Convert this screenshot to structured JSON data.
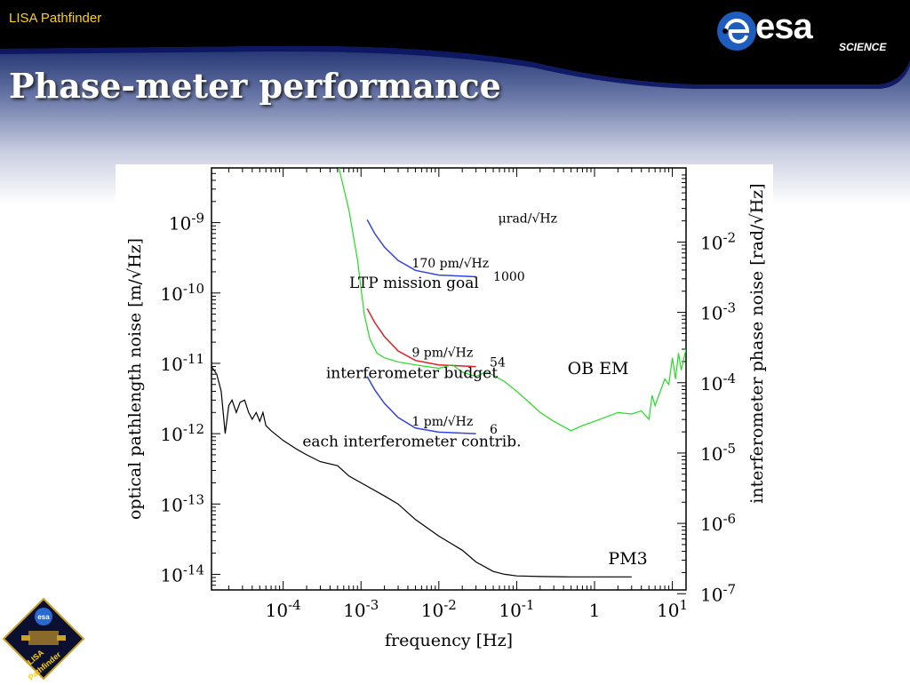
{
  "header": {
    "mission": "LISA Pathfinder",
    "logo_word": "esa",
    "logo_sub": "SCIENCE",
    "title": "Phase-meter performance"
  },
  "badge": {
    "top_text": "esa",
    "line1": "LISA",
    "line2": "Pathfinder"
  },
  "colors": {
    "accent": "#ffd200",
    "banner": "#000000",
    "green": "#22dd22",
    "blue": "#3344dd",
    "red": "#dd2222",
    "black": "#000000"
  },
  "chart_data": {
    "type": "line",
    "xlabel": "frequency [Hz]",
    "ylabel_left": "optical pathlength noise [m/√Hz]",
    "ylabel_right": "interferometer phase noise [rad/√Hz]",
    "x_scale": "log",
    "y_scale": "log",
    "xlim": [
      1.2e-05,
      15
    ],
    "ylim": [
      6e-15,
      6e-09
    ],
    "x_ticks": [
      {
        "value": 0.0001,
        "base": "10",
        "exp": "-4"
      },
      {
        "value": 0.001,
        "base": "10",
        "exp": "-3"
      },
      {
        "value": 0.01,
        "base": "10",
        "exp": "-2"
      },
      {
        "value": 0.1,
        "base": "10",
        "exp": "-1"
      },
      {
        "value": 1,
        "base": "1",
        "exp": ""
      },
      {
        "value": 10,
        "base": "10",
        "exp": "1"
      }
    ],
    "y_ticks_left": [
      {
        "value": 1e-09,
        "base": "10",
        "exp": "-9"
      },
      {
        "value": 1e-10,
        "base": "10",
        "exp": "-10"
      },
      {
        "value": 1e-11,
        "base": "10",
        "exp": "-11"
      },
      {
        "value": 1e-12,
        "base": "10",
        "exp": "-12"
      },
      {
        "value": 1e-13,
        "base": "10",
        "exp": "-13"
      },
      {
        "value": 1e-14,
        "base": "10",
        "exp": "-14"
      }
    ],
    "y_ticks_right": [
      {
        "value": 5.3e-10,
        "base": "10",
        "exp": "-2"
      },
      {
        "value": 5.3e-11,
        "base": "10",
        "exp": "-3"
      },
      {
        "value": 5.3e-12,
        "base": "10",
        "exp": "-4"
      },
      {
        "value": 5.3e-13,
        "base": "10",
        "exp": "-5"
      },
      {
        "value": 5.3e-14,
        "base": "10",
        "exp": "-6"
      },
      {
        "value": 5.3e-15,
        "base": "10",
        "exp": "-7"
      }
    ],
    "series": [
      {
        "name": "OB EM",
        "color": "#22dd22",
        "points": [
          [
            0.00052,
            6e-09
          ],
          [
            0.0007,
            1.5e-09
          ],
          [
            0.0009,
            3e-10
          ],
          [
            0.0011,
            5e-11
          ],
          [
            0.0013,
            2.2e-11
          ],
          [
            0.0016,
            1.4e-11
          ],
          [
            0.002,
            1.2e-11
          ],
          [
            0.003,
            1.05e-11
          ],
          [
            0.005,
            9.5e-12
          ],
          [
            0.007,
            9e-12
          ],
          [
            0.01,
            8.5e-12
          ],
          [
            0.015,
            9.5e-12
          ],
          [
            0.02,
            7.5e-12
          ],
          [
            0.03,
            6.5e-12
          ],
          [
            0.04,
            7.5e-12
          ],
          [
            0.05,
            6.8e-12
          ],
          [
            0.07,
            5.5e-12
          ],
          [
            0.1,
            4e-12
          ],
          [
            0.15,
            2.7e-12
          ],
          [
            0.2,
            2e-12
          ],
          [
            0.3,
            1.5e-12
          ],
          [
            0.5,
            1.1e-12
          ],
          [
            0.7,
            1.3e-12
          ],
          [
            1,
            1.5e-12
          ],
          [
            2,
            2e-12
          ],
          [
            3,
            1.9e-12
          ],
          [
            4,
            2.1e-12
          ],
          [
            5,
            1.6e-12
          ],
          [
            5.5,
            3.5e-12
          ],
          [
            6,
            2.5e-12
          ],
          [
            7,
            4e-12
          ],
          [
            8,
            6e-12
          ],
          [
            9,
            5e-12
          ],
          [
            10,
            1.2e-11
          ],
          [
            11,
            6e-12
          ],
          [
            12,
            1.4e-11
          ],
          [
            13,
            8e-12
          ],
          [
            15,
            1.6e-11
          ]
        ]
      },
      {
        "name": "PM3",
        "color": "#000000",
        "points": [
          [
            1.2e-05,
            9e-12
          ],
          [
            1.4e-05,
            7e-12
          ],
          [
            1.6e-05,
            4e-12
          ],
          [
            1.8e-05,
            1e-12
          ],
          [
            2e-05,
            2.5e-12
          ],
          [
            2.2e-05,
            3e-12
          ],
          [
            2.5e-05,
            2e-12
          ],
          [
            2.8e-05,
            2.8e-12
          ],
          [
            3.2e-05,
            3e-12
          ],
          [
            3.6e-05,
            2e-12
          ],
          [
            4e-05,
            1.6e-12
          ],
          [
            4.5e-05,
            2e-12
          ],
          [
            5e-05,
            1.5e-12
          ],
          [
            5.5e-05,
            2e-12
          ],
          [
            6e-05,
            1.3e-12
          ],
          [
            7e-05,
            1.1e-12
          ],
          [
            0.0001,
            8e-13
          ],
          [
            0.00015,
            6e-13
          ],
          [
            0.0002,
            5e-13
          ],
          [
            0.0003,
            4e-13
          ],
          [
            0.0005,
            3.5e-13
          ],
          [
            0.0007,
            2.5e-13
          ],
          [
            0.001,
            2e-13
          ],
          [
            0.002,
            1.3e-13
          ],
          [
            0.003,
            1e-13
          ],
          [
            0.005,
            6e-14
          ],
          [
            0.01,
            3.5e-14
          ],
          [
            0.02,
            2.2e-14
          ],
          [
            0.03,
            1.5e-14
          ],
          [
            0.05,
            1.1e-14
          ],
          [
            0.07,
            1e-14
          ],
          [
            0.1,
            9.5e-15
          ],
          [
            0.2,
            9.3e-15
          ],
          [
            0.5,
            9.2e-15
          ],
          [
            1,
            9.2e-15
          ],
          [
            3,
            9.2e-15
          ]
        ]
      }
    ],
    "reference_curves": [
      {
        "label": "LTP mission goal",
        "value_label": "170 pm/√Hz",
        "color": "#3344dd",
        "points": [
          [
            0.0012,
            1.1e-09
          ],
          [
            0.0015,
            7e-10
          ],
          [
            0.002,
            4.5e-10
          ],
          [
            0.003,
            2.9e-10
          ],
          [
            0.005,
            2.1e-10
          ],
          [
            0.01,
            1.8e-10
          ],
          [
            0.03,
            1.7e-10
          ]
        ]
      },
      {
        "label": "interferometer budget",
        "value_label": "9 pm/√Hz",
        "color": "#dd2222",
        "points": [
          [
            0.0012,
            6e-11
          ],
          [
            0.0015,
            3.8e-11
          ],
          [
            0.002,
            2.4e-11
          ],
          [
            0.003,
            1.5e-11
          ],
          [
            0.005,
            1.1e-11
          ],
          [
            0.01,
            9.5e-12
          ],
          [
            0.03,
            9e-12
          ]
        ]
      },
      {
        "label": "each interferometer contrib.",
        "value_label": "1 pm/√Hz",
        "color": "#3344dd",
        "points": [
          [
            0.0012,
            6.5e-12
          ],
          [
            0.0015,
            4.2e-12
          ],
          [
            0.002,
            2.7e-12
          ],
          [
            0.003,
            1.7e-12
          ],
          [
            0.005,
            1.2e-12
          ],
          [
            0.01,
            1.05e-12
          ],
          [
            0.03,
            1e-12
          ]
        ]
      }
    ],
    "annotations": [
      {
        "text": "μrad/√Hz",
        "x": 0.058,
        "y": 1e-09
      },
      {
        "text": "1000",
        "x": 0.05,
        "y": 1.5e-10
      },
      {
        "text": "54",
        "x": 0.045,
        "y": 9e-12
      },
      {
        "text": "6",
        "x": 0.045,
        "y": 1e-12
      },
      {
        "text": "OB EM",
        "x": 0.45,
        "y": 7e-12
      },
      {
        "text": "PM3",
        "x": 1.5,
        "y": 1.4e-14
      }
    ]
  }
}
